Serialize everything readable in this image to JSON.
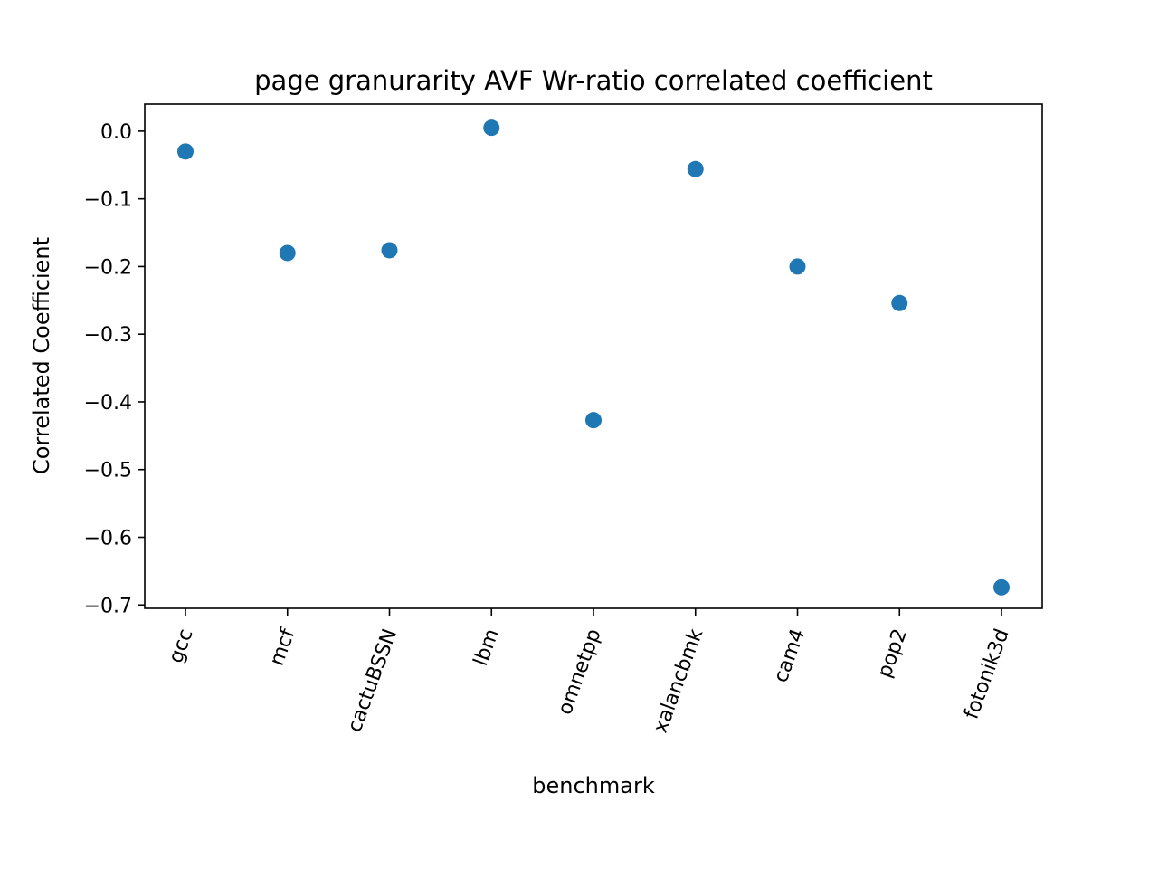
{
  "chart_data": {
    "type": "scatter",
    "title": "page granurarity AVF Wr-ratio correlated coefficient",
    "xlabel": "benchmark",
    "ylabel": "Correlated Coefficient",
    "categories": [
      "gcc",
      "mcf",
      "cactuBSSN",
      "lbm",
      "omnetpp",
      "xalancbmk",
      "cam4",
      "pop2",
      "fotonik3d"
    ],
    "values": [
      -0.03,
      -0.18,
      -0.176,
      0.005,
      -0.427,
      -0.056,
      -0.2,
      -0.254,
      -0.674
    ],
    "yticks": [
      0.0,
      -0.1,
      -0.2,
      -0.3,
      -0.4,
      -0.5,
      -0.6,
      -0.7
    ],
    "ytick_labels": [
      "0.0",
      "−0.1",
      "−0.2",
      "−0.3",
      "−0.4",
      "−0.5",
      "−0.6",
      "−0.7"
    ],
    "ylim": [
      -0.705,
      0.04
    ],
    "grid": false,
    "marker_color": "#1f77b4"
  }
}
